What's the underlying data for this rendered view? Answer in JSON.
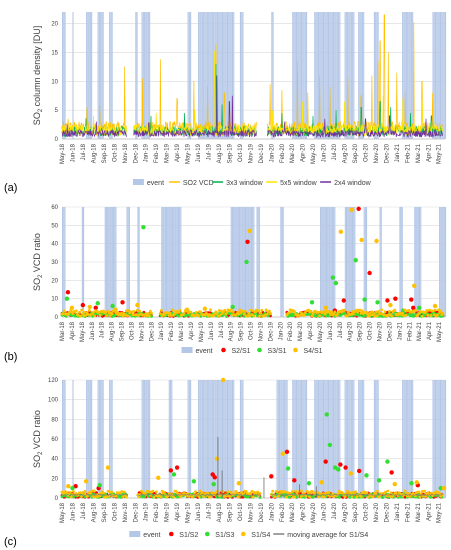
{
  "panel_labels": [
    "(a)",
    "(b)",
    "(c)"
  ],
  "colors": {
    "event": "#b4c7e7",
    "so2": "#ffc000",
    "w3": "#00b050",
    "w5": "#ffe600",
    "w2x4": "#7030a0",
    "red": "#ff0000",
    "green": "#33dd33",
    "orange": "#ffc000",
    "grey": "#909090",
    "gridline": "#d9d9d9",
    "axis": "#bfbfbf"
  },
  "chart_data": [
    {
      "type": "line",
      "panel": "(a)",
      "title": "",
      "ylabel": "SO2 column density [DU]",
      "xlabel": "",
      "ylim": [
        0,
        22
      ],
      "yticks": [
        0,
        5,
        10,
        15,
        20
      ],
      "x_ticks": [
        "May-18",
        "Jun-18",
        "Jul-18",
        "Aug-18",
        "Sep-18",
        "Oct-18",
        "Nov-18",
        "Dec-18",
        "Jan-19",
        "Feb-19",
        "Mar-19",
        "Apr-19",
        "May-19",
        "Jun-19",
        "Jul-19",
        "Aug-19",
        "Sep-19",
        "Oct-19",
        "Nov-19",
        "Dec-19",
        "Jan-20",
        "Feb-20",
        "Mar-20",
        "Apr-20",
        "May-20",
        "Jun-20",
        "Jul-20",
        "Aug-20",
        "Sep-20",
        "Oct-20",
        "Nov-20",
        "Dec-20",
        "Jan-21",
        "Feb-21",
        "Mar-21",
        "Apr-21",
        "May-21"
      ],
      "event_periods": [
        [
          0.0,
          0.3
        ],
        [
          1.0,
          1.1
        ],
        [
          2.3,
          2.9
        ],
        [
          3.4,
          3.9
        ],
        [
          4.5,
          4.8
        ],
        [
          7.0,
          7.2
        ],
        [
          7.6,
          8.4
        ],
        [
          12.0,
          12.3
        ],
        [
          13.0,
          16.4
        ],
        [
          17.0,
          17.3
        ],
        [
          20.0,
          20.2
        ],
        [
          22.0,
          23.4
        ],
        [
          24.1,
          26.6
        ],
        [
          27.0,
          27.9
        ],
        [
          28.3,
          28.9
        ],
        [
          29.8,
          30.2
        ],
        [
          32.5,
          33.5
        ],
        [
          35.4,
          36.6
        ]
      ],
      "gaps": [
        [
          6.2,
          6.8
        ],
        [
          18.6,
          19.6
        ]
      ],
      "series": [
        {
          "name": "SO2 VCD",
          "baseline": 2.2,
          "spikes": [
            [
              0.6,
              3.5
            ],
            [
              2.4,
              5.5
            ],
            [
              3.6,
              5.8
            ],
            [
              6.0,
              12.5
            ],
            [
              7.7,
              10.5
            ],
            [
              9.4,
              13.8
            ],
            [
              11.0,
              7.0
            ],
            [
              12.6,
              10.0
            ],
            [
              13.9,
              9.2
            ],
            [
              14.7,
              16.5
            ],
            [
              15.5,
              8.0
            ],
            [
              16.2,
              7.4
            ],
            [
              19.9,
              9.5
            ],
            [
              21.0,
              8.5
            ],
            [
              22.5,
              13.5
            ],
            [
              23.5,
              8.0
            ],
            [
              24.6,
              11.0
            ],
            [
              25.6,
              9.0
            ],
            [
              27.3,
              10.5
            ],
            [
              28.6,
              7.5
            ],
            [
              29.6,
              11.0
            ],
            [
              30.2,
              13.5
            ],
            [
              30.4,
              17.0
            ],
            [
              30.8,
              21.5
            ],
            [
              31.2,
              15.0
            ],
            [
              32.0,
              11.5
            ],
            [
              32.8,
              8.5
            ],
            [
              33.6,
              20.2
            ],
            [
              34.4,
              10.0
            ],
            [
              35.4,
              8.0
            ]
          ]
        },
        {
          "name": "3x3 window",
          "baseline": 1.6,
          "spikes": [
            [
              2.3,
              3.6
            ],
            [
              8.5,
              4.0
            ],
            [
              11.7,
              4.5
            ],
            [
              14.7,
              13.0
            ],
            [
              15.3,
              6.0
            ],
            [
              21.0,
              4.5
            ],
            [
              24.0,
              4.0
            ],
            [
              26.2,
              5.0
            ],
            [
              28.6,
              5.5
            ],
            [
              30.4,
              6.5
            ],
            [
              31.4,
              5.5
            ],
            [
              33.3,
              4.5
            ],
            [
              35.3,
              4.0
            ]
          ]
        },
        {
          "name": "5x5 window",
          "baseline": 1.8,
          "spikes": [
            [
              3.0,
              4.0
            ],
            [
              9.0,
              4.5
            ],
            [
              12.7,
              5.0
            ],
            [
              14.6,
              15.2
            ],
            [
              20.1,
              5.0
            ],
            [
              23.0,
              6.5
            ],
            [
              27.0,
              6.5
            ],
            [
              30.7,
              7.5
            ],
            [
              32.6,
              7.0
            ],
            [
              34.4,
              6.5
            ]
          ]
        },
        {
          "name": "2x4 window",
          "baseline": 1.1,
          "spikes": [
            [
              0.5,
              2.5
            ],
            [
              3.3,
              3.0
            ],
            [
              8.3,
              2.8
            ],
            [
              14.8,
              11.0
            ],
            [
              16.0,
              6.5
            ],
            [
              16.3,
              7.5
            ],
            [
              21.3,
              3.0
            ],
            [
              25.1,
              3.5
            ],
            [
              29.0,
              3.5
            ],
            [
              31.3,
              4.0
            ],
            [
              34.8,
              3.5
            ]
          ]
        }
      ],
      "legend": [
        "event",
        "SO2 VCD",
        "3x3 window",
        "5x5 window",
        "2x4 window"
      ]
    },
    {
      "type": "scatter",
      "panel": "(b)",
      "title": "",
      "ylabel": "SO2 VCD ratio",
      "xlabel": "",
      "ylim": [
        0,
        60
      ],
      "yticks": [
        0,
        10,
        20,
        30,
        40,
        50,
        60
      ],
      "x_ticks": [
        "Mar-18",
        "Apr-18",
        "May-18",
        "Jun-18",
        "Jul-18",
        "Aug-18",
        "Sep-18",
        "Oct-18",
        "Nov-18",
        "Dec-18",
        "Jan-19",
        "Feb-19",
        "Mar-19",
        "Apr-19",
        "May-19",
        "Jun-19",
        "Jul-19",
        "Aug-19",
        "Sep-19",
        "Oct-19",
        "Nov-19",
        "Dec-19",
        "Jan-20",
        "Feb-20",
        "Mar-20",
        "Apr-20",
        "May-20",
        "Jun-20",
        "Jul-20",
        "Aug-20",
        "Sep-20",
        "Oct-20",
        "Nov-20",
        "Dec-20",
        "Jan-21",
        "Feb-21",
        "Mar-21",
        "Apr-21",
        "May-21"
      ],
      "event_periods": [
        [
          0.0,
          0.3
        ],
        [
          2.0,
          2.2
        ],
        [
          4.3,
          5.5
        ],
        [
          6.5,
          6.8
        ],
        [
          7.6,
          7.8
        ],
        [
          10.0,
          12.0
        ],
        [
          17.0,
          19.4
        ],
        [
          19.6,
          19.9
        ],
        [
          22.0,
          22.3
        ],
        [
          26.0,
          27.5
        ],
        [
          28.5,
          29.5
        ],
        [
          30.4,
          30.7
        ],
        [
          32.0,
          32.2
        ],
        [
          34.0,
          34.3
        ],
        [
          35.5,
          36.1
        ],
        [
          38.0,
          38.6
        ]
      ],
      "gaps": [
        [
          9.1,
          9.8
        ],
        [
          21.1,
          22.6
        ]
      ],
      "series": [
        {
          "name": "S2/S1",
          "baseline": 1.5,
          "points": [
            [
              0.6,
              13.5
            ],
            [
              2.1,
              6.5
            ],
            [
              3.4,
              5.0
            ],
            [
              6.1,
              8.0
            ],
            [
              18.7,
              41.0
            ],
            [
              27.5,
              3.5
            ],
            [
              28.4,
              9.0
            ],
            [
              29.9,
              59.0
            ],
            [
              31.0,
              24.0
            ],
            [
              32.8,
              9.0
            ],
            [
              33.6,
              10.0
            ],
            [
              35.2,
              9.5
            ],
            [
              35.4,
              5.0
            ]
          ]
        },
        {
          "name": "S3/S1",
          "baseline": 1.2,
          "points": [
            [
              0.5,
              10.0
            ],
            [
              3.6,
              7.5
            ],
            [
              5.1,
              6.0
            ],
            [
              8.2,
              49.0
            ],
            [
              17.2,
              5.5
            ],
            [
              18.6,
              30.0
            ],
            [
              25.2,
              8.0
            ],
            [
              27.3,
              21.5
            ],
            [
              27.6,
              18.5
            ],
            [
              29.6,
              31.0
            ],
            [
              30.5,
              9.5
            ],
            [
              31.8,
              8.0
            ],
            [
              34.4,
              3.5
            ],
            [
              36.0,
              5.0
            ]
          ]
        },
        {
          "name": "S4/S1",
          "baseline": 2.2,
          "points": [
            [
              1.0,
              5.0
            ],
            [
              2.8,
              5.5
            ],
            [
              5.4,
              4.0
            ],
            [
              7.6,
              6.5
            ],
            [
              12.6,
              4.0
            ],
            [
              14.4,
              4.5
            ],
            [
              18.9,
              47.0
            ],
            [
              26.6,
              5.0
            ],
            [
              28.1,
              46.5
            ],
            [
              29.2,
              58.5
            ],
            [
              30.2,
              42.0
            ],
            [
              31.7,
              41.5
            ],
            [
              33.1,
              6.5
            ],
            [
              35.5,
              17.0
            ],
            [
              37.6,
              6.0
            ]
          ]
        }
      ],
      "legend": [
        "event",
        "S2/S1",
        "S3/S1",
        "S4/S1"
      ]
    },
    {
      "type": "scatter",
      "panel": "(c)",
      "title": "",
      "ylabel": "SO2 VCD ratio",
      "xlabel": "",
      "ylim": [
        0,
        120
      ],
      "yticks": [
        0,
        20,
        40,
        60,
        80,
        100,
        120
      ],
      "x_ticks": [
        "May-18",
        "Jun-18",
        "Jul-18",
        "Aug-18",
        "Sep-18",
        "Oct-18",
        "Nov-18",
        "Dec-18",
        "Jan-19",
        "Feb-19",
        "Mar-19",
        "Apr-19",
        "May-19",
        "Jun-19",
        "Jul-19",
        "Aug-19",
        "Sep-19",
        "Oct-19",
        "Nov-19",
        "Dec-19",
        "Jan-20",
        "Feb-20",
        "Mar-20",
        "Apr-20",
        "May-20",
        "Jun-20",
        "Jul-20",
        "Aug-20",
        "Sep-20",
        "Oct-20",
        "Nov-20",
        "Dec-20",
        "Jan-21",
        "Feb-21",
        "Mar-21",
        "Apr-21",
        "May-21"
      ],
      "event_periods": [
        [
          0.0,
          0.3
        ],
        [
          1.0,
          1.1
        ],
        [
          2.3,
          2.9
        ],
        [
          3.4,
          3.9
        ],
        [
          4.5,
          4.8
        ],
        [
          7.6,
          8.4
        ],
        [
          10.2,
          10.5
        ],
        [
          12.0,
          12.3
        ],
        [
          13.0,
          16.4
        ],
        [
          17.0,
          17.3
        ],
        [
          20.5,
          21.5
        ],
        [
          22.0,
          23.4
        ],
        [
          24.1,
          26.6
        ],
        [
          27.0,
          27.9
        ],
        [
          28.3,
          28.9
        ],
        [
          29.8,
          30.2
        ],
        [
          32.5,
          33.5
        ],
        [
          35.4,
          36.6
        ]
      ],
      "gaps": [
        [
          6.2,
          7.2
        ],
        [
          19.0,
          20.0
        ]
      ],
      "series": [
        {
          "name": "S1/S2",
          "baseline": 3.0,
          "points": [
            [
              1.3,
              12.0
            ],
            [
              3.5,
              10.0
            ],
            [
              10.4,
              28.0
            ],
            [
              11.0,
              31.0
            ],
            [
              14.4,
              24.0
            ],
            [
              14.6,
              21.0
            ],
            [
              20.0,
              22.0
            ],
            [
              21.5,
              47.0
            ],
            [
              22.2,
              18.0
            ],
            [
              25.2,
              37.0
            ],
            [
              26.6,
              34.0
            ],
            [
              27.1,
              31.0
            ],
            [
              28.4,
              27.5
            ],
            [
              31.5,
              26.0
            ],
            [
              34.0,
              13.0
            ]
          ]
        },
        {
          "name": "S1/S3",
          "baseline": 2.5,
          "points": [
            [
              1.0,
              10.0
            ],
            [
              3.6,
              13.0
            ],
            [
              10.7,
              24.0
            ],
            [
              12.6,
              17.0
            ],
            [
              14.5,
              14.0
            ],
            [
              21.6,
              30.0
            ],
            [
              23.6,
              15.0
            ],
            [
              25.3,
              85.0
            ],
            [
              25.6,
              54.0
            ],
            [
              26.1,
              31.0
            ],
            [
              26.4,
              29.0
            ],
            [
              29.1,
              23.0
            ],
            [
              30.3,
              18.0
            ],
            [
              31.1,
              37.0
            ],
            [
              33.4,
              15.0
            ],
            [
              36.2,
              10.0
            ]
          ]
        },
        {
          "name": "S1/S4",
          "baseline": 4.0,
          "points": [
            [
              0.6,
              12.0
            ],
            [
              2.3,
              17.0
            ],
            [
              4.4,
              31.0
            ],
            [
              9.2,
              20.5
            ],
            [
              14.8,
              40.0
            ],
            [
              15.4,
              120.0
            ],
            [
              16.9,
              15.0
            ],
            [
              21.1,
              45.0
            ],
            [
              24.8,
              16.0
            ],
            [
              27.6,
              25.0
            ],
            [
              31.8,
              14.0
            ],
            [
              33.9,
              16.0
            ],
            [
              36.5,
              10.0
            ]
          ]
        },
        {
          "name": "moving average for S1/S4",
          "values": [
            [
              0,
              2.5
            ],
            [
              6,
              3.0
            ],
            [
              12,
              3.0
            ],
            [
              18,
              3.0
            ],
            [
              24,
              3.0
            ],
            [
              30,
              3.0
            ],
            [
              36.6,
              3.0
            ]
          ],
          "spikes": [
            [
              14.9,
              62.0
            ],
            [
              15.3,
              28.0
            ],
            [
              19.3,
              21.0
            ],
            [
              22.7,
              14.0
            ],
            [
              24.3,
              12.0
            ]
          ]
        }
      ],
      "legend": [
        "event",
        "S1/S2",
        "S1/S3",
        "S1/S4",
        "moving average for S1/S4"
      ]
    }
  ]
}
